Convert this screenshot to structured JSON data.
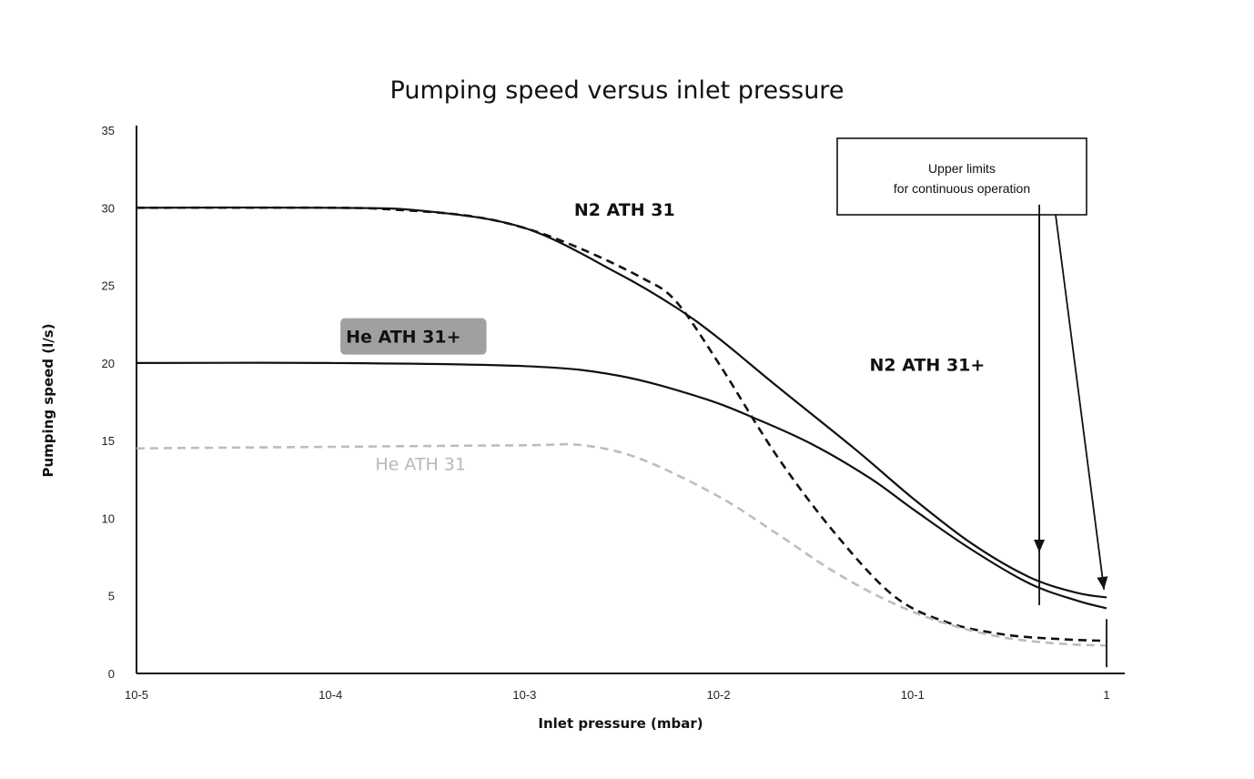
{
  "chart_data": {
    "type": "line",
    "title": "Pumping speed versus inlet pressure",
    "xlabel": "Inlet pressure (mbar)",
    "ylabel": "Pumping speed (l/s)",
    "xscale": "log",
    "xlim": [
      1e-05,
      1
    ],
    "ylim": [
      0,
      35
    ],
    "x_ticks": [
      {
        "value": 1e-05,
        "label": "10-5"
      },
      {
        "value": 0.0001,
        "label": "10-4"
      },
      {
        "value": 0.001,
        "label": "10-3"
      },
      {
        "value": 0.01,
        "label": "10-2"
      },
      {
        "value": 0.1,
        "label": "10-1"
      },
      {
        "value": 1,
        "label": "1"
      }
    ],
    "y_ticks": [
      0,
      5,
      10,
      15,
      20,
      25,
      30,
      35
    ],
    "grid": false,
    "series": [
      {
        "name": "N2 ATH 31",
        "style": "dashed",
        "color": "#111111",
        "points": [
          [
            1e-05,
            30
          ],
          [
            0.0001,
            30
          ],
          [
            0.0002,
            29.9
          ],
          [
            0.0005,
            29.5
          ],
          [
            0.001,
            28.7
          ],
          [
            0.002,
            27.3
          ],
          [
            0.004,
            25.5
          ],
          [
            0.006,
            24
          ],
          [
            0.01,
            20
          ],
          [
            0.02,
            14
          ],
          [
            0.04,
            9
          ],
          [
            0.08,
            5
          ],
          [
            0.15,
            3.3
          ],
          [
            0.3,
            2.5
          ],
          [
            0.6,
            2.2
          ],
          [
            1,
            2.1
          ]
        ]
      },
      {
        "name": "N2 ATH 31+",
        "style": "solid",
        "color": "#111111",
        "points": [
          [
            1e-05,
            30
          ],
          [
            0.0001,
            30
          ],
          [
            0.0003,
            29.8
          ],
          [
            0.001,
            28.7
          ],
          [
            0.003,
            25.8
          ],
          [
            0.006,
            23.6
          ],
          [
            0.01,
            21.6
          ],
          [
            0.02,
            18.5
          ],
          [
            0.05,
            14.5
          ],
          [
            0.1,
            11.3
          ],
          [
            0.2,
            8.4
          ],
          [
            0.4,
            6.2
          ],
          [
            0.7,
            5.2
          ],
          [
            1,
            4.9
          ]
        ]
      },
      {
        "name": "He ATH 31+",
        "style": "solid",
        "color": "#111111",
        "points": [
          [
            1e-05,
            20
          ],
          [
            0.0001,
            20
          ],
          [
            0.001,
            19.8
          ],
          [
            0.003,
            19.2
          ],
          [
            0.008,
            17.8
          ],
          [
            0.015,
            16.5
          ],
          [
            0.03,
            14.8
          ],
          [
            0.06,
            12.6
          ],
          [
            0.1,
            10.6
          ],
          [
            0.2,
            8
          ],
          [
            0.4,
            5.8
          ],
          [
            0.7,
            4.7
          ],
          [
            1,
            4.2
          ]
        ]
      },
      {
        "name": "He ATH 31",
        "style": "dashed",
        "color": "#bdbdbd",
        "points": [
          [
            1e-05,
            14.5
          ],
          [
            0.0001,
            14.6
          ],
          [
            0.001,
            14.7
          ],
          [
            0.002,
            14.7
          ],
          [
            0.004,
            13.8
          ],
          [
            0.01,
            11.4
          ],
          [
            0.02,
            9
          ],
          [
            0.04,
            6.5
          ],
          [
            0.08,
            4.5
          ],
          [
            0.15,
            3.2
          ],
          [
            0.3,
            2.3
          ],
          [
            0.6,
            1.9
          ],
          [
            1,
            1.8
          ]
        ]
      }
    ],
    "series_labels": [
      {
        "name": "N2 ATH 31",
        "x": 0.0018,
        "y": 29.5,
        "light": false,
        "highlight": false
      },
      {
        "name": "N2 ATH 31+",
        "x": 0.06,
        "y": 19.5,
        "light": false,
        "highlight": false
      },
      {
        "name": "He ATH 31+",
        "x": 0.00012,
        "y": 21.3,
        "light": false,
        "highlight": true
      },
      {
        "name": "He ATH 31",
        "x": 0.00017,
        "y": 13.1,
        "light": true,
        "highlight": false
      }
    ],
    "annotation": {
      "lines": [
        "Upper limits",
        "for continuous operation"
      ],
      "arrow_targets": [
        {
          "x": 0.45,
          "y": 7.8
        },
        {
          "x": 0.97,
          "y": 5.4
        }
      ],
      "limit_lines": [
        {
          "x": 0.45,
          "y_top": 30.2,
          "y_bottom": 4.4
        },
        {
          "x": 1.0,
          "y_top": 3.5,
          "y_bottom": 0.4
        }
      ]
    },
    "colors": {
      "highlight": "#8f8f8f"
    }
  }
}
